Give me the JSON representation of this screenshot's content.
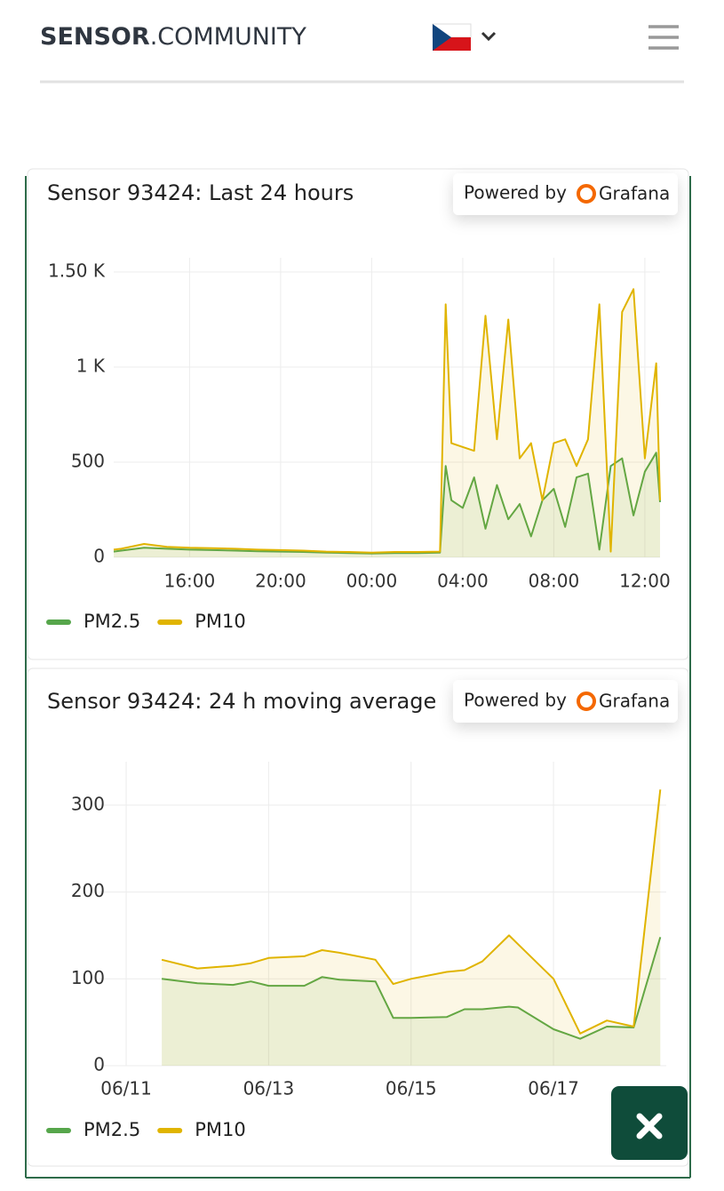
{
  "header": {
    "brand_bold": "SENSOR",
    "brand_light": ".COMMUNITY"
  },
  "badges": [
    {
      "prefix": "Powered by",
      "brand": "Grafana"
    },
    {
      "prefix": "Powered by",
      "brand": "Grafana"
    }
  ],
  "chart_data": [
    {
      "type": "line",
      "title": "Sensor 93424: Last 24 hours",
      "x": [
        "12:40",
        "13:00",
        "14:00",
        "15:00",
        "16:00",
        "17:00",
        "18:00",
        "19:00",
        "20:00",
        "21:00",
        "22:00",
        "23:00",
        "00:00",
        "01:00",
        "02:00",
        "03:00",
        "03:15",
        "03:30",
        "04:00",
        "04:30",
        "05:00",
        "05:30",
        "06:00",
        "06:30",
        "07:00",
        "07:30",
        "08:00",
        "08:30",
        "09:00",
        "09:30",
        "10:00",
        "10:30",
        "11:00",
        "11:30",
        "12:00",
        "12:30",
        "12:40"
      ],
      "series": [
        {
          "name": "PM2.5",
          "color": "#56a64b",
          "values": [
            30,
            35,
            50,
            45,
            40,
            38,
            35,
            32,
            30,
            28,
            25,
            22,
            20,
            22,
            22,
            25,
            480,
            300,
            260,
            420,
            150,
            380,
            200,
            280,
            110,
            300,
            360,
            160,
            420,
            440,
            40,
            480,
            520,
            220,
            450,
            550,
            290
          ]
        },
        {
          "name": "PM10",
          "color": "#e0b400",
          "values": [
            40,
            45,
            70,
            55,
            50,
            48,
            45,
            40,
            38,
            35,
            30,
            28,
            25,
            28,
            28,
            30,
            1330,
            600,
            580,
            560,
            1270,
            620,
            1250,
            520,
            600,
            300,
            600,
            620,
            480,
            620,
            1330,
            30,
            1290,
            1410,
            520,
            1020,
            300
          ]
        }
      ],
      "xlim": [
        "12:40",
        "12:40"
      ],
      "xticks": [
        "16:00",
        "20:00",
        "00:00",
        "04:00",
        "08:00",
        "12:00"
      ],
      "ylim": [
        0,
        1575
      ],
      "yticks": [
        0,
        500,
        {
          "value": 1000,
          "label": "1 K"
        },
        {
          "value": 1500,
          "label": "1.50 K"
        }
      ],
      "grid": true,
      "legend": "bottom"
    },
    {
      "type": "line",
      "title": "Sensor 93424: 24 h moving average",
      "x": [
        "06/11 12:00",
        "06/12 00:00",
        "06/12 12:00",
        "06/12 18:00",
        "06/13 00:00",
        "06/13 12:00",
        "06/13 18:00",
        "06/14 00:00",
        "06/14 12:00",
        "06/14 18:00",
        "06/15 00:00",
        "06/15 12:00",
        "06/15 18:00",
        "06/16 00:00",
        "06/16 09:00",
        "06/16 12:00",
        "06/17 00:00",
        "06/17 09:00",
        "06/17 18:00",
        "06/18 03:00",
        "06/18 12:00"
      ],
      "series": [
        {
          "name": "PM2.5",
          "color": "#56a64b",
          "values": [
            100,
            95,
            93,
            97,
            92,
            92,
            102,
            99,
            97,
            55,
            55,
            56,
            65,
            65,
            68,
            67,
            42,
            31,
            45,
            44,
            148
          ]
        },
        {
          "name": "PM10",
          "color": "#e0b400",
          "values": [
            122,
            112,
            115,
            118,
            124,
            126,
            133,
            130,
            122,
            94,
            100,
            108,
            110,
            120,
            150,
            140,
            100,
            37,
            52,
            45,
            318
          ]
        }
      ],
      "xlim": [
        "06/10 15:00",
        "06/18 14:00"
      ],
      "xticks": [
        "06/11",
        "06/13",
        "06/15",
        "06/17"
      ],
      "ylim": [
        0,
        350
      ],
      "yticks": [
        0,
        100,
        200,
        300
      ],
      "grid": true,
      "legend": "bottom"
    }
  ]
}
